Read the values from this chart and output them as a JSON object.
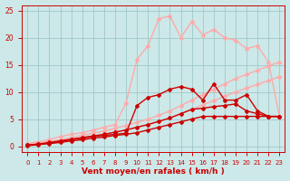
{
  "bg_color": "#cce8e8",
  "grid_color": "#a0c8c8",
  "xlabel": "Vent moyen/en rafales ( km/h )",
  "xlabel_color": "#cc0000",
  "tick_color": "#cc0000",
  "xlim": [
    -0.5,
    23.5
  ],
  "ylim": [
    -1,
    26
  ],
  "yticks": [
    0,
    5,
    10,
    15,
    20,
    25
  ],
  "xticks": [
    0,
    1,
    2,
    3,
    4,
    5,
    6,
    7,
    8,
    9,
    10,
    11,
    12,
    13,
    14,
    15,
    16,
    17,
    18,
    19,
    20,
    21,
    22,
    23
  ],
  "series": [
    {
      "x": [
        0,
        1,
        2,
        3,
        4,
        5,
        6,
        7,
        8,
        9,
        10,
        11,
        12,
        13,
        14,
        15,
        16,
        17,
        18,
        19,
        20,
        21,
        22,
        23
      ],
      "y": [
        0.3,
        0.6,
        0.9,
        1.2,
        1.6,
        2.0,
        2.4,
        2.8,
        3.3,
        3.8,
        4.4,
        5.0,
        5.7,
        6.5,
        7.5,
        8.5,
        9.5,
        10.5,
        11.5,
        12.5,
        13.2,
        14.0,
        14.8,
        15.5
      ],
      "color": "#ffaaaa",
      "lw": 1.0,
      "marker": "D",
      "ms": 2.0,
      "zorder": 2
    },
    {
      "x": [
        0,
        1,
        2,
        3,
        4,
        5,
        6,
        7,
        8,
        9,
        10,
        11,
        12,
        13,
        14,
        15,
        16,
        17,
        18,
        19,
        20,
        21,
        22,
        23
      ],
      "y": [
        0.2,
        0.5,
        0.7,
        1.0,
        1.3,
        1.6,
        1.9,
        2.2,
        2.6,
        3.0,
        3.5,
        4.0,
        4.6,
        5.2,
        6.0,
        6.8,
        7.6,
        8.4,
        9.2,
        10.0,
        10.7,
        11.4,
        12.1,
        12.8
      ],
      "color": "#ffaaaa",
      "lw": 1.0,
      "marker": "D",
      "ms": 2.0,
      "zorder": 2
    },
    {
      "x": [
        0,
        1,
        2,
        3,
        4,
        5,
        6,
        7,
        8,
        9,
        10,
        11,
        12,
        13,
        14,
        15,
        16,
        17,
        18,
        19,
        20,
        21,
        22,
        23
      ],
      "y": [
        0.5,
        0.8,
        1.2,
        1.8,
        2.2,
        2.5,
        3.0,
        3.5,
        4.0,
        8.0,
        16.0,
        18.5,
        23.5,
        24.0,
        20.0,
        23.0,
        20.5,
        21.5,
        20.0,
        19.5,
        18.0,
        18.5,
        15.5,
        5.5
      ],
      "color": "#ffaaaa",
      "lw": 1.0,
      "marker": "D",
      "ms": 2.0,
      "zorder": 2
    },
    {
      "x": [
        0,
        1,
        2,
        3,
        4,
        5,
        6,
        7,
        8,
        9,
        10,
        11,
        12,
        13,
        14,
        15,
        16,
        17,
        18,
        19,
        20,
        21,
        22,
        23
      ],
      "y": [
        0.2,
        0.4,
        0.7,
        1.0,
        1.3,
        1.6,
        1.9,
        2.2,
        2.6,
        3.0,
        3.5,
        4.0,
        4.6,
        5.2,
        6.0,
        6.8,
        7.0,
        7.3,
        7.5,
        7.8,
        6.5,
        6.0,
        5.5,
        5.5
      ],
      "color": "#cc0000",
      "lw": 1.0,
      "marker": "D",
      "ms": 2.0,
      "zorder": 3
    },
    {
      "x": [
        0,
        1,
        2,
        3,
        4,
        5,
        6,
        7,
        8,
        9,
        10,
        11,
        12,
        13,
        14,
        15,
        16,
        17,
        18,
        19,
        20,
        21,
        22,
        23
      ],
      "y": [
        0.2,
        0.4,
        0.6,
        0.9,
        1.2,
        1.5,
        1.8,
        2.0,
        2.2,
        2.4,
        7.5,
        9.0,
        9.5,
        10.5,
        11.0,
        10.5,
        8.5,
        11.5,
        8.5,
        8.5,
        9.5,
        6.5,
        5.5,
        5.5
      ],
      "color": "#cc0000",
      "lw": 1.0,
      "marker": "D",
      "ms": 2.0,
      "zorder": 3
    },
    {
      "x": [
        0,
        1,
        2,
        3,
        4,
        5,
        6,
        7,
        8,
        9,
        10,
        11,
        12,
        13,
        14,
        15,
        16,
        17,
        18,
        19,
        20,
        21,
        22,
        23
      ],
      "y": [
        0.1,
        0.3,
        0.5,
        0.7,
        1.0,
        1.2,
        1.5,
        1.7,
        2.0,
        2.2,
        2.5,
        3.0,
        3.5,
        4.0,
        4.5,
        5.0,
        5.5,
        5.5,
        5.5,
        5.5,
        5.5,
        5.5,
        5.5,
        5.5
      ],
      "color": "#cc0000",
      "lw": 1.0,
      "marker": "D",
      "ms": 2.0,
      "zorder": 3
    }
  ]
}
